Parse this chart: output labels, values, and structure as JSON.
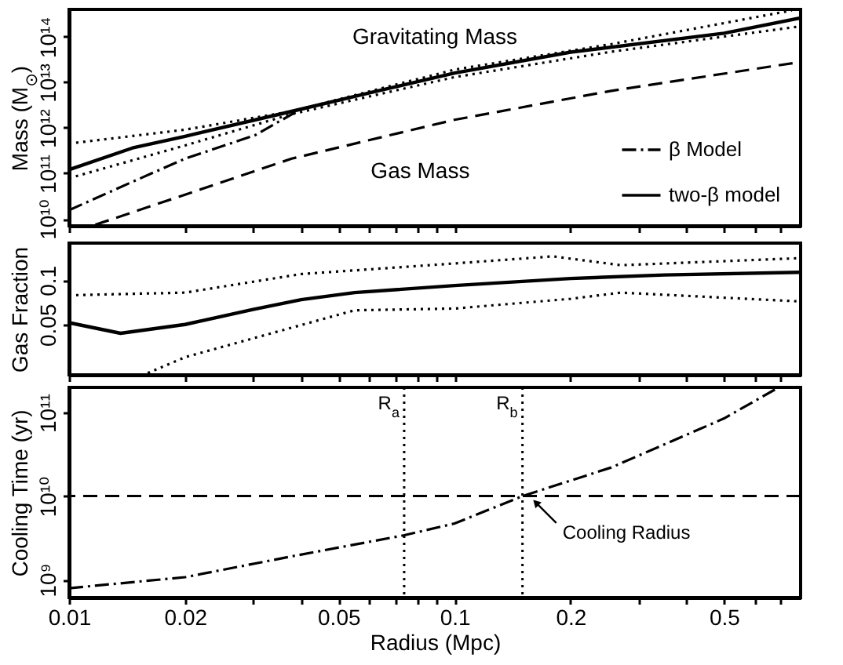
{
  "chart_data": [
    {
      "type": "line",
      "ylabel": "Mass (M$_{⊙}$)",
      "log": "xy",
      "xlim": [
        0.01,
        0.79
      ],
      "ylim": [
        7000000000.0,
        400000000000000.0
      ],
      "xticks": [
        0.01,
        0.02,
        {
          "value": 0.03,
          "label": null
        },
        {
          "value": 0.04,
          "label": null
        },
        0.05,
        {
          "value": 0.06,
          "label": null
        },
        {
          "value": 0.07,
          "label": null
        },
        {
          "value": 0.08,
          "label": null
        },
        {
          "value": 0.09,
          "label": null
        },
        0.1,
        0.2,
        {
          "value": 0.3,
          "label": null
        },
        {
          "value": 0.4,
          "label": null
        },
        0.5,
        {
          "value": 0.6,
          "label": null
        },
        {
          "value": 0.7,
          "label": null
        }
      ],
      "yticks": [
        {
          "value": 10000000000.0,
          "label": "10¹⁰"
        },
        {
          "value": 100000000000.0,
          "label": "10¹¹"
        },
        {
          "value": 1000000000000.0,
          "label": "10¹²"
        },
        {
          "value": 10000000000000.0,
          "label": "10¹³"
        },
        {
          "value": 100000000000000.0,
          "label": "10¹⁴"
        }
      ],
      "tick_labels": "y",
      "grid": false,
      "legend": "bottom right",
      "annotations": [
        "Gravitating Mass",
        "Gas Mass"
      ],
      "series": [
        {
          "name": "β Model",
          "color": "#000000",
          "line_style": "dashdot",
          "x": [
            0.01,
            0.0146,
            0.02,
            0.0304,
            0.039
          ],
          "values": [
            15500000000.0,
            65000000000.0,
            210000000000.0,
            690000000000.0,
            2300000000000.0
          ]
        },
        {
          "name": "two-β model",
          "color": "#000000",
          "line_style": "solid",
          "x": [
            0.01,
            0.0146,
            0.02,
            0.0378,
            0.0608,
            0.1,
            0.2,
            0.5,
            0.79
          ],
          "values": [
            120000000000.0,
            360000000000.0,
            650000000000.0,
            2300000000000.0,
            6000000000000.0,
            16000000000000.0,
            46000000000000.0,
            120000000000000.0,
            260000000000000.0
          ]
        },
        {
          "color": "#000000",
          "line_style": "dotted",
          "x": [
            0.01,
            0.02,
            0.0378,
            0.1,
            0.255,
            0.75
          ],
          "values": [
            450000000000.0,
            910000000000.0,
            2300000000000.0,
            19000000000000.0,
            69000000000000.0,
            380000000000000.0
          ]
        },
        {
          "color": "#000000",
          "line_style": "dotted",
          "x": [
            0.01,
            0.02,
            0.0378,
            0.1,
            0.255,
            0.79
          ],
          "values": [
            78000000000.0,
            410000000000.0,
            2000000000000.0,
            13000000000000.0,
            47000000000000.0,
            170000000000000.0
          ]
        },
        {
          "color": "#000000",
          "line_style": "dashed",
          "x": [
            0.0117,
            0.02,
            0.0378,
            0.1,
            0.255,
            0.79
          ],
          "values": [
            7400000000.0,
            34000000000.0,
            210000000000.0,
            1500000000000.0,
            6500000000000.0,
            28000000000000.0
          ]
        }
      ]
    },
    {
      "type": "line",
      "ylabel": "Gas Fraction",
      "log": "x",
      "xlim": [
        0.01,
        0.79
      ],
      "ylim": [
        -0.007,
        0.142
      ],
      "xticks": [
        0.01,
        0.02,
        {
          "value": 0.03,
          "label": null
        },
        {
          "value": 0.04,
          "label": null
        },
        0.05,
        {
          "value": 0.06,
          "label": null
        },
        {
          "value": 0.07,
          "label": null
        },
        {
          "value": 0.08,
          "label": null
        },
        {
          "value": 0.09,
          "label": null
        },
        0.1,
        0.2,
        {
          "value": 0.3,
          "label": null
        },
        {
          "value": 0.4,
          "label": null
        },
        0.5,
        {
          "value": 0.6,
          "label": null
        },
        {
          "value": 0.7,
          "label": null
        }
      ],
      "yticks": [
        0.05,
        0.1
      ],
      "tick_labels": "y",
      "grid": false,
      "series": [
        {
          "color": "#000000",
          "line_style": "solid",
          "x": [
            0.01,
            0.0136,
            0.02,
            0.03,
            0.04,
            0.055,
            0.1,
            0.2,
            0.35,
            0.79
          ],
          "values": [
            0.052,
            0.04,
            0.05,
            0.067,
            0.078,
            0.086,
            0.094,
            0.102,
            0.106,
            0.109
          ]
        },
        {
          "color": "#000000",
          "line_style": "dotted",
          "x": [
            0.01,
            0.02,
            0.04,
            0.1,
            0.18,
            0.27,
            0.79
          ],
          "values": [
            0.083,
            0.086,
            0.107,
            0.119,
            0.127,
            0.117,
            0.125
          ]
        },
        {
          "color": "#000000",
          "line_style": "dotted",
          "x": [
            0.016,
            0.02,
            0.055,
            0.1,
            0.2,
            0.27,
            0.79
          ],
          "values": [
            -0.005,
            0.013,
            0.066,
            0.068,
            0.079,
            0.086,
            0.076
          ]
        }
      ]
    },
    {
      "type": "line",
      "xlabel": "Radius (Mpc)",
      "ylabel": "Cooling Time (yr)",
      "log": "xy",
      "xlim": [
        0.01,
        0.79
      ],
      "ylim": [
        610000000.0,
        200000000000.0
      ],
      "xticks": [
        0.01,
        0.02,
        {
          "value": 0.03,
          "label": null
        },
        {
          "value": 0.04,
          "label": null
        },
        0.05,
        {
          "value": 0.06,
          "label": null
        },
        {
          "value": 0.07,
          "label": null
        },
        {
          "value": 0.08,
          "label": null
        },
        {
          "value": 0.09,
          "label": null
        },
        0.1,
        0.2,
        {
          "value": 0.3,
          "label": null
        },
        {
          "value": 0.4,
          "label": null
        },
        0.5,
        {
          "value": 0.6,
          "label": null
        },
        {
          "value": 0.7,
          "label": null
        }
      ],
      "yticks": [
        {
          "value": 1000000000.0,
          "label": "10⁹"
        },
        {
          "value": 10000000000.0,
          "label": "10¹⁰"
        },
        {
          "value": 100000000000.0,
          "label": "10¹¹"
        }
      ],
      "grid": false,
      "ref_lines": [
        {
          "axis": "x",
          "value": 0.074,
          "label": "R$_{a}$",
          "line_style": "dotted"
        },
        {
          "axis": "x",
          "value": 0.15,
          "label": "R$_{b}$",
          "line_style": "dotted"
        },
        {
          "axis": "y",
          "value": 10000000000.0,
          "line_style": "dashed"
        }
      ],
      "annotations": [
        {
          "text": "Cooling Radius",
          "x": 0.158,
          "y": 9500000000.0
        }
      ],
      "series": [
        {
          "color": "#000000",
          "line_style": "dashdot",
          "x": [
            0.01,
            0.02,
            0.0378,
            0.0741,
            0.1,
            0.15,
            0.255,
            0.5,
            0.693
          ],
          "values": [
            790000000.0,
            1070000000.0,
            1900000000.0,
            3400000000.0,
            4700000000.0,
            10000000000.0,
            22000000000.0,
            85000000000.0,
            200000000000.0
          ]
        }
      ]
    }
  ]
}
